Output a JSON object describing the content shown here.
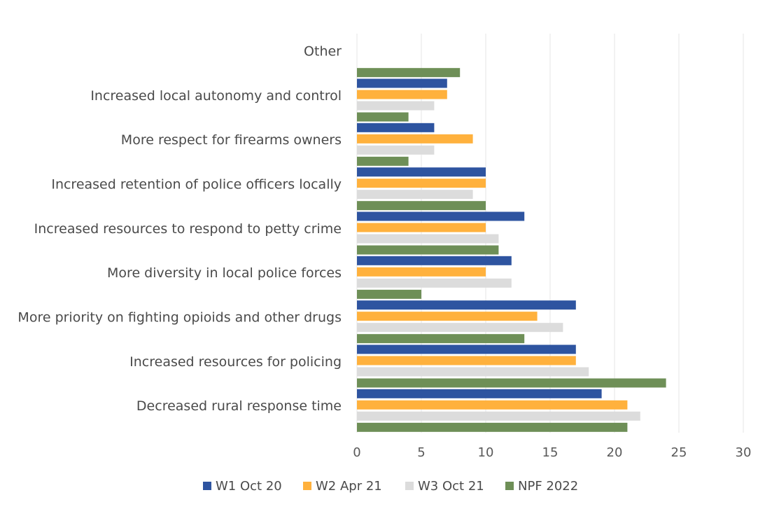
{
  "chart_data": {
    "type": "bar",
    "orientation": "horizontal",
    "categories": [
      "Other",
      "Increased local autonomy and control",
      "More respect for firearms owners",
      "Increased retention of police officers locally",
      "Increased resources to respond to petty crime",
      "More diversity in local police forces",
      "More priority on fighting opioids and other drugs",
      "Increased resources for policing",
      "Decreased rural response time"
    ],
    "series": [
      {
        "name": "W1 Oct 20",
        "color": "#2e54a0",
        "values": [
          null,
          7,
          6,
          10,
          13,
          12,
          17,
          17,
          19
        ]
      },
      {
        "name": "W2 Apr 21",
        "color": "#ffb13d",
        "values": [
          null,
          7,
          9,
          10,
          10,
          10,
          14,
          17,
          21
        ]
      },
      {
        "name": "W3 Oct 21",
        "color": "#dcdcdc",
        "values": [
          null,
          6,
          6,
          9,
          11,
          12,
          16,
          18,
          22
        ]
      },
      {
        "name": "NPF 2022",
        "color": "#6e8f57",
        "values": [
          8,
          4,
          4,
          10,
          11,
          5,
          13,
          24,
          21
        ]
      }
    ],
    "xlim": [
      0,
      30
    ],
    "xticks": [
      "0",
      "5",
      "10",
      "15",
      "20",
      "25",
      "30"
    ],
    "grid": true,
    "legend_position": "bottom",
    "title": "",
    "xlabel": "",
    "ylabel": ""
  }
}
